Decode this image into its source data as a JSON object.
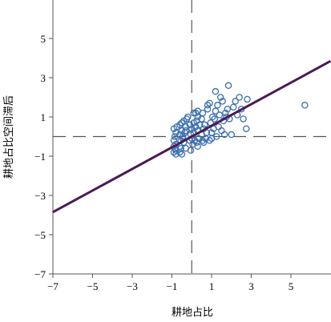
{
  "chart_data": {
    "type": "scatter",
    "title": "",
    "xlabel": "耕地占比",
    "ylabel": "耕地占比空间滞后",
    "xlim": [
      -7,
      7
    ],
    "ylim": [
      -7,
      7
    ],
    "x_ticks": [
      -7,
      -5,
      -3,
      -1,
      1,
      3,
      5
    ],
    "y_ticks": [
      -7,
      -5,
      -3,
      -1,
      1,
      3,
      5
    ],
    "x_tick_labels": [
      "−7",
      "−5",
      "−3",
      "−1",
      "1",
      "3",
      "5"
    ],
    "y_tick_labels": [
      "−7",
      "−5",
      "−3",
      "−1",
      "1",
      "3",
      "5"
    ],
    "reference_lines": {
      "x": 0,
      "y": 0,
      "style": "dashed"
    },
    "fit_line": {
      "slope": 0.55,
      "intercept": 0.0
    },
    "colors": {
      "points": "#3a6fb0",
      "fit_line": "#4b1a55",
      "axes": "#555555",
      "reference": "#555555"
    },
    "points": [
      [
        -0.9,
        -0.8
      ],
      [
        -0.8,
        -0.9
      ],
      [
        -0.85,
        -0.6
      ],
      [
        -0.9,
        -0.5
      ],
      [
        -0.8,
        -0.4
      ],
      [
        -0.9,
        -0.2
      ],
      [
        -0.85,
        0.0
      ],
      [
        -0.8,
        0.2
      ],
      [
        -0.9,
        0.4
      ],
      [
        -0.75,
        0.5
      ],
      [
        -0.8,
        -0.7
      ],
      [
        -0.6,
        -0.8
      ],
      [
        -0.6,
        -0.5
      ],
      [
        -0.55,
        -0.2
      ],
      [
        -0.6,
        0.1
      ],
      [
        -0.5,
        0.3
      ],
      [
        -0.6,
        0.6
      ],
      [
        -0.5,
        0.7
      ],
      [
        -0.55,
        -0.6
      ],
      [
        -0.45,
        0.0
      ],
      [
        -0.4,
        -0.3
      ],
      [
        -0.35,
        0.2
      ],
      [
        -0.3,
        0.5
      ],
      [
        -0.4,
        0.8
      ],
      [
        -0.3,
        -0.6
      ],
      [
        -0.25,
        0.9
      ],
      [
        -0.2,
        1.0
      ],
      [
        -0.3,
        0.3
      ],
      [
        -0.45,
        -0.1
      ],
      [
        -0.1,
        -0.2
      ],
      [
        -0.05,
        0.1
      ],
      [
        0.0,
        0.4
      ],
      [
        -0.1,
        0.6
      ],
      [
        0.05,
        -0.4
      ],
      [
        0.1,
        0.2
      ],
      [
        0.0,
        -0.1
      ],
      [
        0.1,
        0.7
      ],
      [
        0.15,
        -0.2
      ],
      [
        0.2,
        1.2
      ],
      [
        0.25,
        0.8
      ],
      [
        0.3,
        1.0
      ],
      [
        0.2,
        0.5
      ],
      [
        0.3,
        0.3
      ],
      [
        0.35,
        -0.1
      ],
      [
        0.25,
        -0.3
      ],
      [
        0.4,
        0.6
      ],
      [
        0.3,
        1.3
      ],
      [
        0.5,
        0.1
      ],
      [
        0.55,
        -0.2
      ],
      [
        0.6,
        0.4
      ],
      [
        0.5,
        0.9
      ],
      [
        0.65,
        0.6
      ],
      [
        0.7,
        -0.1
      ],
      [
        0.6,
        -0.3
      ],
      [
        0.75,
        0.2
      ],
      [
        0.55,
        1.2
      ],
      [
        0.8,
        1.4
      ],
      [
        0.9,
        1.7
      ],
      [
        0.95,
        0.7
      ],
      [
        1.0,
        0.2
      ],
      [
        1.05,
        1.0
      ],
      [
        0.9,
        -0.2
      ],
      [
        1.1,
        0.4
      ],
      [
        1.2,
        1.3
      ],
      [
        1.15,
        0.9
      ],
      [
        1.0,
        -0.1
      ],
      [
        1.3,
        1.6
      ],
      [
        1.35,
        0.5
      ],
      [
        1.4,
        1.1
      ],
      [
        1.5,
        0.3
      ],
      [
        1.55,
        1.8
      ],
      [
        1.6,
        0.8
      ],
      [
        1.45,
        2.0
      ],
      [
        1.7,
        1.2
      ],
      [
        1.65,
        0.1
      ],
      [
        1.8,
        1.4
      ],
      [
        1.85,
        2.6
      ],
      [
        1.9,
        0.9
      ],
      [
        2.0,
        0.1
      ],
      [
        2.1,
        1.5
      ],
      [
        2.2,
        1.8
      ],
      [
        2.3,
        1.1
      ],
      [
        2.4,
        2.0
      ],
      [
        2.5,
        1.4
      ],
      [
        2.6,
        0.9
      ],
      [
        2.8,
        1.9
      ],
      [
        2.75,
        0.4
      ],
      [
        1.2,
        2.3
      ],
      [
        0.1,
        1.2
      ],
      [
        0.8,
        1.6
      ],
      [
        -0.5,
        -0.9
      ],
      [
        0.3,
        -0.5
      ],
      [
        -0.05,
        -0.7
      ],
      [
        1.75,
        1.0
      ],
      [
        1.25,
        0.0
      ],
      [
        5.7,
        1.6
      ]
    ]
  }
}
